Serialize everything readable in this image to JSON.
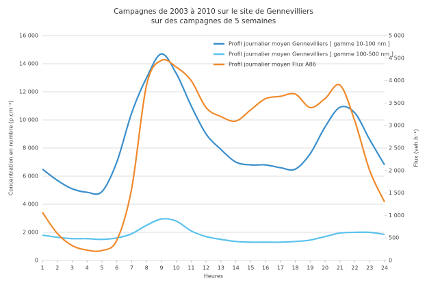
{
  "chart_data": {
    "type": "line",
    "title": "Campagnes de 2003 à 2010 sur le site de Gennevilliers",
    "subtitle": "sur des campagnes de 5 semaines",
    "x_label": "Heures",
    "y_label": "Concentration en nombre (p.cm⁻³)",
    "y2_label": "Flux (veh.h⁻¹)",
    "x": [
      1,
      2,
      3,
      4,
      5,
      6,
      7,
      8,
      9,
      10,
      11,
      12,
      13,
      14,
      15,
      16,
      17,
      18,
      19,
      20,
      21,
      22,
      23,
      24
    ],
    "xlim": [
      1,
      24
    ],
    "xticks": [
      1,
      2,
      3,
      4,
      5,
      6,
      7,
      8,
      9,
      10,
      11,
      12,
      13,
      14,
      15,
      16,
      17,
      18,
      19,
      20,
      21,
      22,
      23,
      24
    ],
    "ylim": [
      0,
      16000
    ],
    "yticks": [
      0,
      {
        "value": 2000,
        "label": "2 000"
      },
      {
        "value": 4000,
        "label": "4 000"
      },
      {
        "value": 6000,
        "label": "6 000"
      },
      {
        "value": 8000,
        "label": "8 000"
      },
      {
        "value": 10000,
        "label": "10 000"
      },
      {
        "value": 12000,
        "label": "12 000"
      },
      {
        "value": 14000,
        "label": "14 000"
      },
      {
        "value": 16000,
        "label": "16 000"
      }
    ],
    "y2lim": [
      0,
      5000
    ],
    "y2ticks": [
      0,
      500,
      {
        "value": 1000,
        "label": "1 000"
      },
      {
        "value": 1500,
        "label": "1 500"
      },
      {
        "value": 2000,
        "label": "2 000"
      },
      {
        "value": 2500,
        "label": "2 500"
      },
      {
        "value": 3000,
        "label": "3 000"
      },
      {
        "value": 3500,
        "label": "3 500"
      },
      {
        "value": 4000,
        "label": "4 000"
      },
      {
        "value": 4500,
        "label": "4 500"
      },
      {
        "value": 5000,
        "label": "5 000"
      }
    ],
    "grid": true,
    "legend": "top-right",
    "series": [
      {
        "name": "Profil journalier moyen Gennevilliers [ gamme 10-100 nm ]",
        "color": "#3a8fcb",
        "values": [
          6500,
          5700,
          5100,
          4850,
          4900,
          7000,
          10500,
          13000,
          14700,
          13300,
          11000,
          9000,
          7900,
          7000,
          6800,
          6800,
          6600,
          6500,
          7600,
          9500,
          10900,
          10500,
          8600,
          6800
        ]
      },
      {
        "name": "Profil journalier moyen Gennevilliers [ gamme 100-500 nm ]",
        "color": "#5bc2ec",
        "values": [
          1800,
          1650,
          1550,
          1550,
          1500,
          1600,
          1900,
          2500,
          2950,
          2800,
          2100,
          1700,
          1500,
          1350,
          1300,
          1300,
          1300,
          1350,
          1450,
          1700,
          1950,
          2000,
          2000,
          1850
        ]
      },
      {
        "name": "Profil journalier moyen Flux A86",
        "color": "#f0892b",
        "axis": "y2",
        "values": [
          1070,
          600,
          330,
          230,
          220,
          450,
          1600,
          3900,
          4450,
          4300,
          4000,
          3400,
          3200,
          3100,
          3350,
          3600,
          3650,
          3700,
          3400,
          3600,
          3900,
          3100,
          2000,
          1300
        ]
      }
    ]
  }
}
